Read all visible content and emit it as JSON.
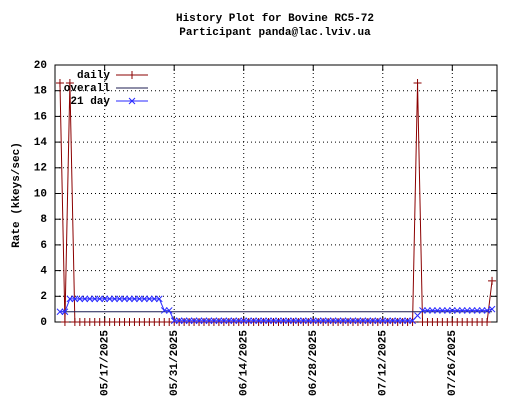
{
  "chart_data": {
    "type": "line",
    "title": "History Plot for Bovine RC5-72",
    "subtitle": "Participant panda@lac.lviv.ua",
    "y_label": "Rate (kkeys/sec)",
    "x": [
      "05/08/2025",
      "05/09/2025",
      "05/10/2025",
      "05/11/2025",
      "05/12/2025",
      "05/13/2025",
      "05/14/2025",
      "05/15/2025",
      "05/16/2025",
      "05/17/2025",
      "05/18/2025",
      "05/19/2025",
      "05/20/2025",
      "05/21/2025",
      "05/22/2025",
      "05/23/2025",
      "05/24/2025",
      "05/25/2025",
      "05/26/2025",
      "05/27/2025",
      "05/28/2025",
      "05/29/2025",
      "05/30/2025",
      "05/31/2025",
      "06/01/2025",
      "06/02/2025",
      "06/03/2025",
      "06/04/2025",
      "06/05/2025",
      "06/06/2025",
      "06/07/2025",
      "06/08/2025",
      "06/09/2025",
      "06/10/2025",
      "06/11/2025",
      "06/12/2025",
      "06/13/2025",
      "06/14/2025",
      "06/15/2025",
      "06/16/2025",
      "06/17/2025",
      "06/18/2025",
      "06/19/2025",
      "06/20/2025",
      "06/21/2025",
      "06/22/2025",
      "06/23/2025",
      "06/24/2025",
      "06/25/2025",
      "06/26/2025",
      "06/27/2025",
      "06/28/2025",
      "06/29/2025",
      "06/30/2025",
      "07/01/2025",
      "07/02/2025",
      "07/03/2025",
      "07/04/2025",
      "07/05/2025",
      "07/06/2025",
      "07/07/2025",
      "07/08/2025",
      "07/09/2025",
      "07/10/2025",
      "07/11/2025",
      "07/12/2025",
      "07/13/2025",
      "07/14/2025",
      "07/15/2025",
      "07/16/2025",
      "07/17/2025",
      "07/18/2025",
      "07/19/2025",
      "07/20/2025",
      "07/21/2025",
      "07/22/2025",
      "07/23/2025",
      "07/24/2025",
      "07/25/2025",
      "07/26/2025",
      "07/27/2025",
      "07/28/2025",
      "07/29/2025",
      "07/30/2025",
      "07/31/2025",
      "08/01/2025",
      "08/02/2025",
      "08/03/2025"
    ],
    "series": [
      {
        "name": "daily",
        "color": "#8b0000",
        "marker": "plus",
        "values": [
          18.6,
          0,
          18.6,
          0,
          0,
          0,
          0,
          0,
          0,
          0,
          0,
          0,
          0,
          0,
          0,
          0,
          0,
          0,
          0,
          0,
          0,
          0,
          0,
          0,
          0,
          0,
          0,
          0,
          0,
          0,
          0,
          0,
          0,
          0,
          0,
          0,
          0,
          0,
          0,
          0,
          0,
          0,
          0,
          0,
          0,
          0,
          0,
          0,
          0,
          0,
          0,
          0,
          0,
          0,
          0,
          0,
          0,
          0,
          0,
          0,
          0,
          0,
          0,
          0,
          0,
          0,
          0,
          0,
          0,
          0,
          0,
          0,
          18.6,
          0,
          0,
          0,
          0,
          0,
          0,
          0,
          0,
          0,
          0,
          0,
          0,
          0,
          0,
          3.2
        ]
      },
      {
        "name": "overall",
        "color": "#1c1c50",
        "marker": "none",
        "x": [
          "05/08/2025",
          "08/03/2025"
        ],
        "values": [
          0.8,
          0.8
        ]
      },
      {
        "name": "21 day",
        "color": "#2a2aff",
        "marker": "cross",
        "values": [
          0.8,
          0.8,
          1.8,
          1.8,
          1.8,
          1.8,
          1.8,
          1.8,
          1.8,
          1.8,
          1.8,
          1.8,
          1.8,
          1.8,
          1.8,
          1.8,
          1.8,
          1.8,
          1.8,
          1.8,
          1.8,
          0.9,
          0.9,
          0.1,
          0.1,
          0.1,
          0.1,
          0.1,
          0.1,
          0.1,
          0.1,
          0.1,
          0.1,
          0.1,
          0.1,
          0.1,
          0.1,
          0.1,
          0.1,
          0.1,
          0.1,
          0.1,
          0.1,
          0.1,
          0.1,
          0.1,
          0.1,
          0.1,
          0.1,
          0.1,
          0.1,
          0.1,
          0.1,
          0.1,
          0.1,
          0.1,
          0.1,
          0.1,
          0.1,
          0.1,
          0.1,
          0.1,
          0.1,
          0.1,
          0.1,
          0.1,
          0.1,
          0.1,
          0.1,
          0.1,
          0.1,
          0.1,
          0.5,
          0.9,
          0.9,
          0.9,
          0.9,
          0.9,
          0.9,
          0.9,
          0.9,
          0.9,
          0.9,
          0.9,
          0.9,
          0.9,
          0.9,
          1.0
        ]
      }
    ],
    "xlim": [
      "05/07/2025",
      "08/04/2025"
    ],
    "xticks": [
      "05/17/2025",
      "05/31/2025",
      "06/14/2025",
      "06/28/2025",
      "07/12/2025",
      "07/26/2025"
    ],
    "ylim": [
      0,
      20
    ],
    "yticks": [
      0,
      2,
      4,
      6,
      8,
      10,
      12,
      14,
      16,
      18,
      20
    ],
    "grid": true,
    "legend": "top-left"
  }
}
